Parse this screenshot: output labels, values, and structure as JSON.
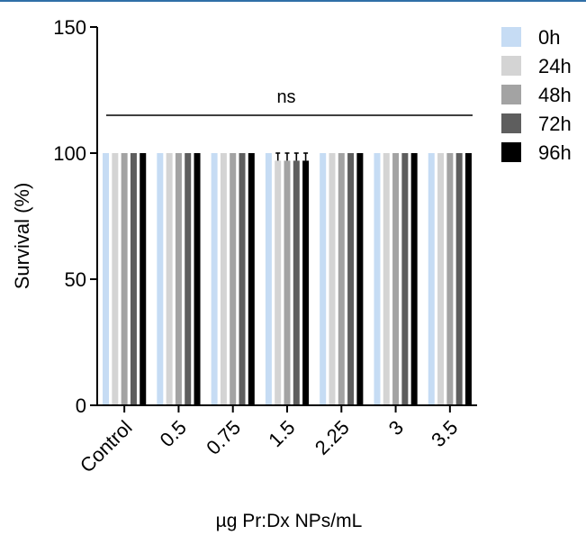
{
  "chart_data": {
    "type": "bar",
    "title": "",
    "xlabel": "µg Pr:Dx NPs/mL",
    "ylabel": "Survival (%)",
    "ylim": [
      0,
      150
    ],
    "yticks": [
      0,
      50,
      100,
      150
    ],
    "categories": [
      "Control",
      "0.5",
      "0.75",
      "1.5",
      "2.25",
      "3",
      "3.5"
    ],
    "series": [
      {
        "name": "0h",
        "color": "#c6dcf4",
        "values": [
          100,
          100,
          100,
          100,
          100,
          100,
          100
        ],
        "errors": [
          0,
          0,
          0,
          0,
          0,
          0,
          0
        ]
      },
      {
        "name": "24h",
        "color": "#d4d4d4",
        "values": [
          100,
          100,
          100,
          97,
          100,
          100,
          100
        ],
        "errors": [
          0,
          0,
          0,
          3,
          0,
          0,
          0
        ]
      },
      {
        "name": "48h",
        "color": "#a3a3a3",
        "values": [
          100,
          100,
          100,
          97,
          100,
          100,
          100
        ],
        "errors": [
          0,
          0,
          0,
          3,
          0,
          0,
          0
        ]
      },
      {
        "name": "72h",
        "color": "#5e5e5e",
        "values": [
          100,
          100,
          100,
          97,
          100,
          100,
          100
        ],
        "errors": [
          0,
          0,
          0,
          3,
          0,
          0,
          0
        ]
      },
      {
        "name": "96h",
        "color": "#000000",
        "values": [
          100,
          100,
          100,
          97,
          100,
          100,
          100
        ],
        "errors": [
          0,
          0,
          0,
          3,
          0,
          0,
          0
        ]
      }
    ],
    "annotation": {
      "text": "ns",
      "y": 115
    },
    "legend_position": "right",
    "grid": false
  },
  "header_rule_color": "#2f6fa7"
}
